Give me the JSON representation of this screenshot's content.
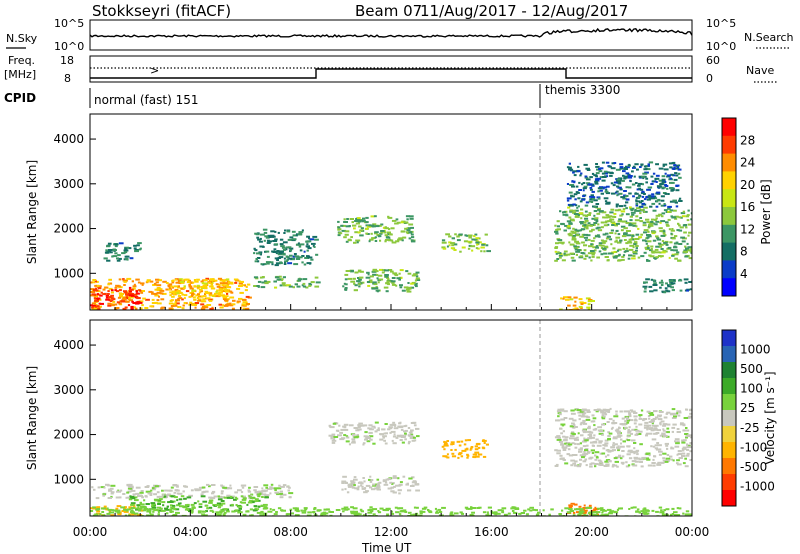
{
  "header": {
    "station": "Stokkseyri (fitACF)",
    "beam": "Beam 07",
    "date_range": "11/Aug/2017 - 12/Aug/2017"
  },
  "sky_panel": {
    "label": "N.Sky",
    "right_label": "N.Search",
    "y_top": "10^5",
    "y_bottom": "10^0",
    "right_top": "10^5",
    "right_bottom": "10^0"
  },
  "freq_panel": {
    "label_line1": "Freq.",
    "label_line2": "[MHz]",
    "right_label": "Nave",
    "y_top": "18",
    "y_bottom": "8",
    "right_top": "60",
    "right_bottom": "0",
    "chevron": ">"
  },
  "cpid_panel": {
    "label": "CPID",
    "modes": [
      "normal (fast) 151",
      "themis 3300"
    ]
  },
  "time_axis": {
    "label": "Time UT",
    "ticks": [
      "00:00",
      "04:00",
      "08:00",
      "12:00",
      "16:00",
      "20:00",
      "00:00"
    ]
  },
  "colorbars": {
    "power": {
      "label": "Power [dB]",
      "ticks": [
        "28",
        "24",
        "20",
        "16",
        "12",
        "8",
        "4"
      ],
      "colors": [
        "#ff0000",
        "#ff3b00",
        "#ff8c00",
        "#ffd200",
        "#c8e614",
        "#8cc83c",
        "#3c9664",
        "#146e64",
        "#0a3cc8",
        "#0000ff"
      ]
    },
    "velocity": {
      "label": "Velocity [m s⁻¹]",
      "ticks": [
        "1000",
        "500",
        "100",
        "25",
        "-25",
        "-100",
        "-500",
        "-1000"
      ],
      "colors": [
        "#1e32c8",
        "#2864b4",
        "#1e8232",
        "#3caa28",
        "#78d23c",
        "#c8c8be",
        "#f0d23c",
        "#ffb400",
        "#ff7800",
        "#ff3c00",
        "#ff0000"
      ]
    }
  },
  "chart_data": [
    {
      "type": "heatmap",
      "title": "",
      "ylabel": "Slant Range [km]",
      "xlabel": "",
      "ylim": [
        180,
        4560
      ],
      "yticks": [
        "1000",
        "2000",
        "3000",
        "4000"
      ],
      "color_quantity": "Power [dB]",
      "x_unit": "hours UT",
      "echo_regions": [
        {
          "t_start": 0.0,
          "t_end": 6.3,
          "range_low": 220,
          "range_high": 900,
          "power_db": 22
        },
        {
          "t_start": 0.0,
          "t_end": 2.0,
          "range_low": 220,
          "range_high": 700,
          "power_db": 28
        },
        {
          "t_start": 3.0,
          "t_end": 5.5,
          "range_low": 500,
          "range_high": 900,
          "power_db": 20
        },
        {
          "t_start": 0.5,
          "t_end": 2.0,
          "range_low": 1300,
          "range_high": 1700,
          "power_db": 8
        },
        {
          "t_start": 6.5,
          "t_end": 9.0,
          "range_low": 1200,
          "range_high": 2000,
          "power_db": 8
        },
        {
          "t_start": 6.5,
          "t_end": 9.0,
          "range_low": 700,
          "range_high": 950,
          "power_db": 12
        },
        {
          "t_start": 9.8,
          "t_end": 12.8,
          "range_low": 1700,
          "range_high": 2300,
          "power_db": 12
        },
        {
          "t_start": 10.0,
          "t_end": 13.0,
          "range_low": 600,
          "range_high": 1100,
          "power_db": 12
        },
        {
          "t_start": 14.0,
          "t_end": 15.8,
          "range_low": 1500,
          "range_high": 1900,
          "power_db": 14
        },
        {
          "t_start": 18.5,
          "t_end": 24.0,
          "range_low": 1300,
          "range_high": 2500,
          "power_db": 12
        },
        {
          "t_start": 18.7,
          "t_end": 20.0,
          "range_low": 200,
          "range_high": 500,
          "power_db": 20
        },
        {
          "t_start": 19.0,
          "t_end": 23.5,
          "range_low": 2500,
          "range_high": 3500,
          "power_db": 6
        },
        {
          "t_start": 22.0,
          "t_end": 24.0,
          "range_low": 600,
          "range_high": 900,
          "power_db": 8
        }
      ]
    },
    {
      "type": "heatmap",
      "title": "",
      "ylabel": "Slant Range [km]",
      "xlabel": "Time UT",
      "ylim": [
        180,
        4560
      ],
      "yticks": [
        "1000",
        "2000",
        "3000",
        "4000"
      ],
      "color_quantity": "Velocity [m s⁻¹]",
      "x_unit": "hours UT",
      "echo_regions": [
        {
          "t_start": 0.0,
          "t_end": 8.0,
          "range_low": 600,
          "range_high": 900,
          "velocity": 0
        },
        {
          "t_start": 0.0,
          "t_end": 2.0,
          "range_low": 200,
          "range_high": 450,
          "velocity": -150
        },
        {
          "t_start": 1.5,
          "t_end": 7.0,
          "range_low": 300,
          "range_high": 650,
          "velocity": 300
        },
        {
          "t_start": 9.5,
          "t_end": 13.0,
          "range_low": 1800,
          "range_high": 2300,
          "velocity": 0
        },
        {
          "t_start": 10.0,
          "t_end": 13.0,
          "range_low": 700,
          "range_high": 1100,
          "velocity": 0
        },
        {
          "t_start": 14.0,
          "t_end": 15.8,
          "range_low": 1500,
          "range_high": 1900,
          "velocity": -100
        },
        {
          "t_start": 18.5,
          "t_end": 24.0,
          "range_low": 1300,
          "range_high": 2600,
          "velocity": 0
        },
        {
          "t_start": 19.0,
          "t_end": 20.2,
          "range_low": 200,
          "range_high": 500,
          "velocity": -250
        },
        {
          "t_start": 0.0,
          "t_end": 24.0,
          "range_low": 180,
          "range_high": 400,
          "velocity": 120
        }
      ]
    }
  ]
}
